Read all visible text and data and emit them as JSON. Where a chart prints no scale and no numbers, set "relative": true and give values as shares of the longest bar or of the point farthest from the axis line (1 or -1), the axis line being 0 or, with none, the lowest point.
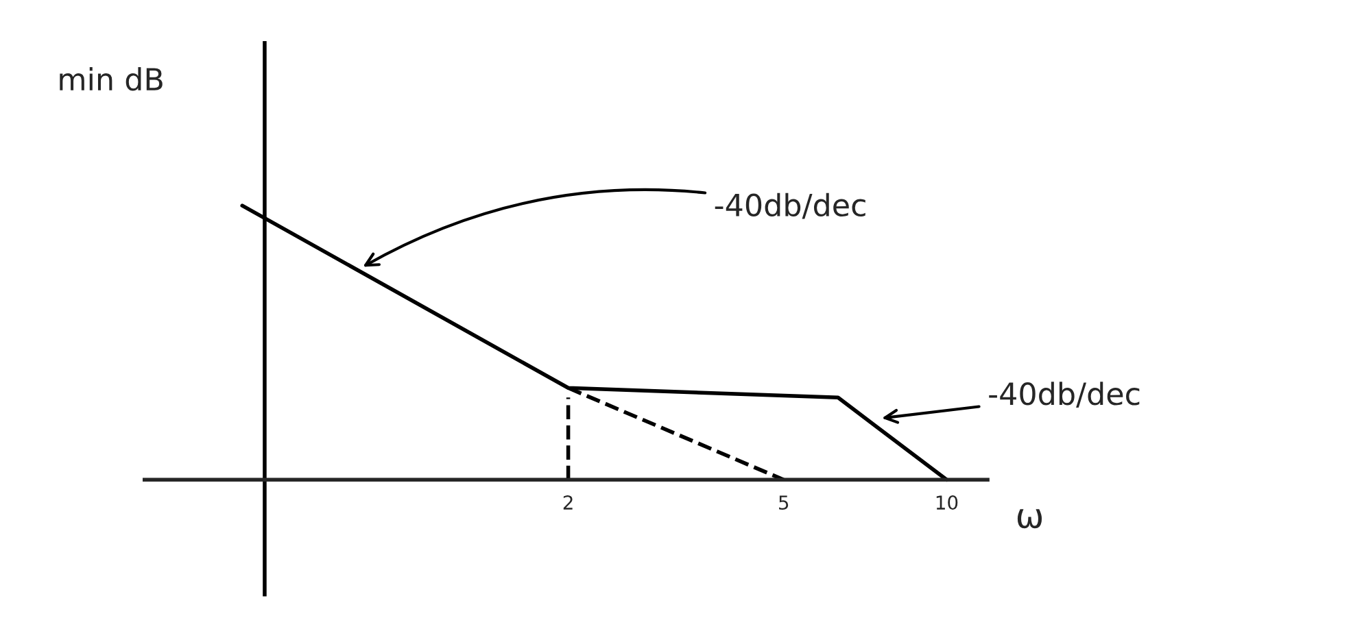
{
  "chart_data": {
    "type": "line",
    "relative": true,
    "xlabel": "ω",
    "ylabel": "min dB",
    "log": "x",
    "xlim": [
      0.33,
      11.9
    ],
    "xticks": [
      2,
      5,
      10
    ],
    "grid": false,
    "legend": false,
    "marker": "none",
    "series": [
      {
        "color": "#000000",
        "line_style": "solid",
        "x": [
          0.5,
          2,
          6.3,
          10
        ],
        "values": [
          1,
          0.335,
          0.3,
          0
        ]
      },
      {
        "color": "#000000",
        "line_style": "dashed",
        "x": [
          2,
          5
        ],
        "values": [
          0.335,
          0
        ]
      },
      {
        "color": "#000000",
        "line_style": "dashed",
        "x": [
          2,
          2
        ],
        "values": [
          0,
          0.3
        ]
      }
    ],
    "ref_lines": [
      {
        "axis": "x",
        "value": 0.55,
        "color": "#000000",
        "line_style": "solid"
      }
    ],
    "annotations": [
      "-40db/dec",
      "-40db/dec"
    ]
  }
}
